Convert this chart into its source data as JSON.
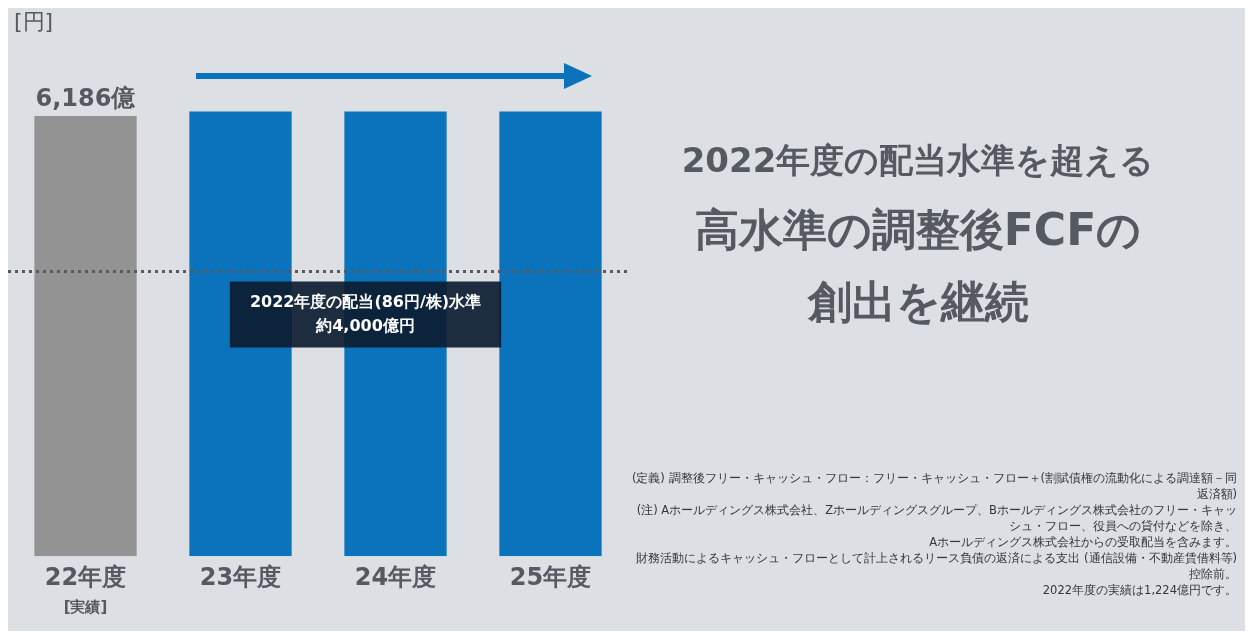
{
  "chart_data": {
    "type": "bar",
    "title": "高水準の調整後FCFの創出を継続",
    "subtitle": "2022年度の配当水準を超える",
    "ylabel": "[円]",
    "categories": [
      "22年度",
      "23年度",
      "24年度",
      "25年度"
    ],
    "values": [
      6186,
      6250,
      6250,
      6250
    ],
    "colors": [
      "#939393",
      "#0a73bb",
      "#0a73bb",
      "#0a73bb"
    ],
    "value_labels": [
      "6,186億",
      null,
      null,
      null
    ],
    "tick_labels": "x",
    "grid": false,
    "legend": false,
    "ref_lines": [
      {
        "axis": "y",
        "value": 4000,
        "label": "2022年度の配当(86円/株)水準約4,000億円",
        "color": "#555a60",
        "line_style": "dotted"
      }
    ],
    "annotations": [
      "[実績]",
      "(定義) 調整後フリー・キャッシュ・フロー：フリー・キャッシュ・フロー＋(割賦債権の流動化による調達額－同返済額)",
      "(注) Aホールディングス株式会社、Zホールディングスグループ、Bホールディングス株式会社のフリー・キャッシュ・フロー、役員への貸付などを除き、",
      "Aホールディングス株式会社からの受取配当を含みます。",
      "財務活動によるキャッシュ・フローとして計上されるリース負債の返済による支出 (通信設備・不動産賃借料等) 控除前。",
      "2022年度の実績は1,224億円です。"
    ]
  }
}
